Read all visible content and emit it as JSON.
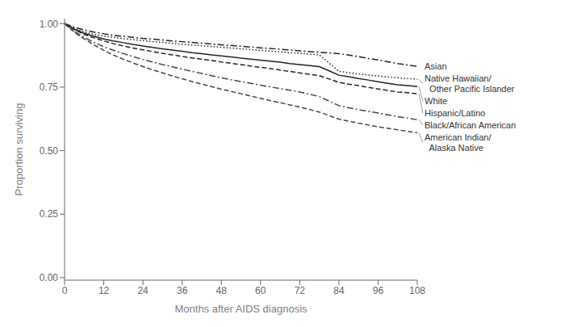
{
  "chart_data": {
    "type": "line",
    "xlabel": "Months after AIDS diagnosis",
    "ylabel": "Proportion surviving",
    "xlim": [
      0,
      108
    ],
    "ylim": [
      -0.01,
      1.02
    ],
    "xticks": [
      0,
      12,
      24,
      36,
      48,
      60,
      72,
      84,
      96,
      108
    ],
    "yticks": [
      {
        "value": 0,
        "label": "0.00"
      },
      0.25,
      {
        "value": 0.5,
        "label": "0.50"
      },
      0.75,
      {
        "value": 1,
        "label": "1.00"
      }
    ],
    "grid": false,
    "x": [
      0,
      3,
      6,
      9,
      12,
      15,
      18,
      21,
      24,
      27,
      30,
      33,
      36,
      39,
      42,
      45,
      48,
      51,
      54,
      57,
      60,
      63,
      66,
      69,
      72,
      75,
      78,
      81,
      84,
      87,
      90,
      93,
      96,
      99,
      102,
      105,
      108
    ],
    "series": [
      {
        "name": "Asian",
        "color": "#222222",
        "line_style": "dashdot",
        "values": [
          1.0,
          0.986,
          0.975,
          0.967,
          0.96,
          0.954,
          0.95,
          0.946,
          0.942,
          0.939,
          0.936,
          0.932,
          0.929,
          0.926,
          0.923,
          0.92,
          0.917,
          0.914,
          0.911,
          0.908,
          0.905,
          0.902,
          0.899,
          0.896,
          0.893,
          0.89,
          0.887,
          0.885,
          0.882,
          0.876,
          0.87,
          0.863,
          0.857,
          0.85,
          0.843,
          0.837,
          0.832
        ]
      },
      {
        "name": "Native Hawaiian/ Other Pacific Islander",
        "color": "#222222",
        "line_style": "dotted",
        "values": [
          1.0,
          0.982,
          0.967,
          0.958,
          0.951,
          0.946,
          0.941,
          0.937,
          0.933,
          0.929,
          0.926,
          0.922,
          0.919,
          0.916,
          0.913,
          0.91,
          0.907,
          0.904,
          0.901,
          0.898,
          0.895,
          0.892,
          0.889,
          0.886,
          0.883,
          0.88,
          0.877,
          0.845,
          0.812,
          0.807,
          0.802,
          0.798,
          0.794,
          0.79,
          0.787,
          0.784,
          0.781
        ]
      },
      {
        "name": "White",
        "color": "#222222",
        "line_style": "solid",
        "values": [
          1.0,
          0.978,
          0.962,
          0.95,
          0.94,
          0.932,
          0.925,
          0.918,
          0.912,
          0.906,
          0.901,
          0.896,
          0.891,
          0.886,
          0.882,
          0.877,
          0.873,
          0.869,
          0.864,
          0.86,
          0.856,
          0.852,
          0.848,
          0.843,
          0.839,
          0.835,
          0.831,
          0.814,
          0.797,
          0.791,
          0.784,
          0.778,
          0.771,
          0.765,
          0.759,
          0.756,
          0.752
        ]
      },
      {
        "name": "Hispanic/Latino",
        "color": "#222222",
        "line_style": "dashed",
        "values": [
          1.0,
          0.976,
          0.958,
          0.944,
          0.932,
          0.921,
          0.912,
          0.904,
          0.897,
          0.89,
          0.883,
          0.877,
          0.871,
          0.865,
          0.86,
          0.855,
          0.849,
          0.844,
          0.839,
          0.833,
          0.828,
          0.823,
          0.817,
          0.812,
          0.806,
          0.801,
          0.795,
          0.782,
          0.769,
          0.762,
          0.756,
          0.749,
          0.743,
          0.737,
          0.731,
          0.728,
          0.724
        ]
      },
      {
        "name": "Black/African American",
        "color": "#444444",
        "line_style": "dashdot",
        "values": [
          1.0,
          0.969,
          0.946,
          0.926,
          0.909,
          0.895,
          0.882,
          0.87,
          0.859,
          0.849,
          0.839,
          0.83,
          0.821,
          0.812,
          0.804,
          0.795,
          0.787,
          0.779,
          0.772,
          0.765,
          0.758,
          0.751,
          0.744,
          0.738,
          0.731,
          0.722,
          0.713,
          0.695,
          0.677,
          0.669,
          0.661,
          0.655,
          0.648,
          0.641,
          0.634,
          0.628,
          0.622
        ]
      },
      {
        "name": "American Indian/ Alaska Native",
        "color": "#444444",
        "line_style": "dashed",
        "values": [
          1.0,
          0.966,
          0.94,
          0.916,
          0.895,
          0.876,
          0.86,
          0.845,
          0.831,
          0.818,
          0.806,
          0.794,
          0.783,
          0.772,
          0.762,
          0.752,
          0.742,
          0.733,
          0.724,
          0.715,
          0.706,
          0.697,
          0.689,
          0.68,
          0.672,
          0.662,
          0.652,
          0.638,
          0.624,
          0.616,
          0.608,
          0.601,
          0.594,
          0.588,
          0.582,
          0.576,
          0.57
        ]
      }
    ],
    "annotations": [
      {
        "text": "Asian",
        "y": 0.832
      },
      {
        "text": "Native Hawaiian/\n  Other Pacific Islander",
        "y": 0.781
      },
      {
        "text": "White",
        "y": 0.752
      },
      {
        "text": "Hispanic/Latino",
        "y": 0.724
      },
      {
        "text": "Black/African American",
        "y": 0.622
      },
      {
        "text": "American Indian/\n  Alaska Native",
        "y": 0.57
      }
    ]
  }
}
